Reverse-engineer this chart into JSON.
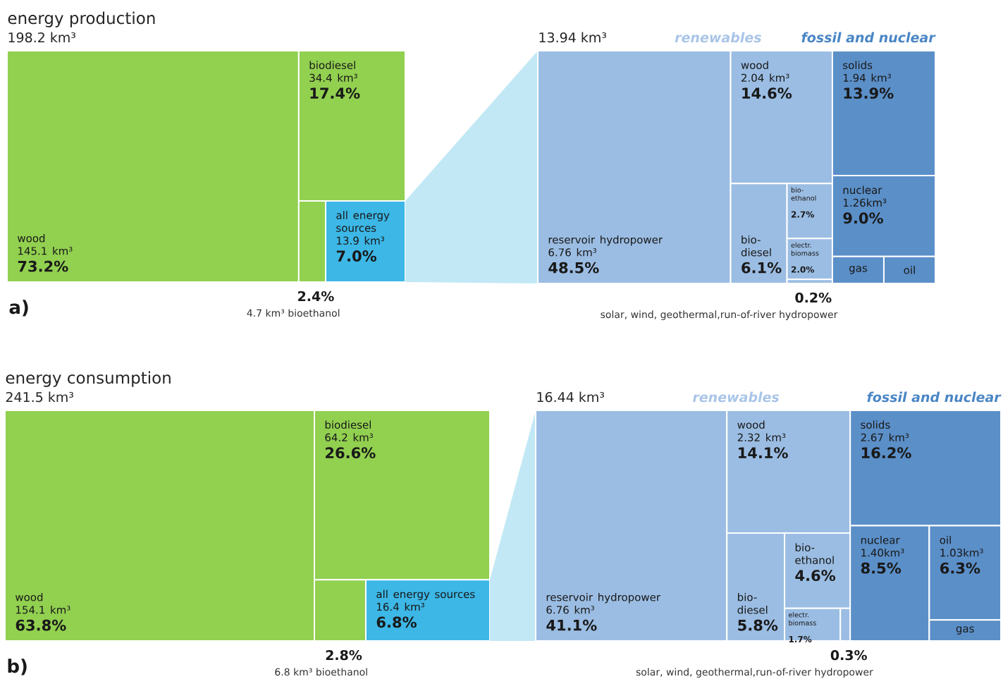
{
  "chart_data": [
    {
      "type": "other",
      "title": "energy production",
      "subtitle": "198.2 km³",
      "annotations": [
        "a)"
      ],
      "categories": [
        "wood",
        "biodiesel",
        "bioethanol",
        "all energy sources"
      ],
      "series": [
        {
          "colors": [
            "#92d050",
            "#92d050",
            "#92d050",
            "#3cb7e6"
          ],
          "values": [
            145.1,
            34.4,
            4.7,
            13.9
          ],
          "value_labels": [
            "145.1 km³",
            "34.4 km³",
            "4.7 km³",
            "13.9 km³"
          ]
        },
        {
          "values": [
            73.2,
            17.4,
            2.4,
            7.0
          ],
          "value_labels": [
            "73.2%",
            "17.4%",
            "2.4%",
            "7.0%"
          ]
        }
      ]
    },
    {
      "type": "other",
      "subtitle": "13.94 km³",
      "annotations": [
        "renewables",
        "fossil and nuclear"
      ],
      "categories": [
        "reservoir hydropower",
        "wood",
        "bio-diesel",
        "bio-ethanol",
        "electr. biomass",
        "solar, wind, geothermal,run-of-river hydropower",
        "solids",
        "nuclear",
        "gas",
        "oil"
      ],
      "series": [
        {
          "colors": [
            "#9bbde3",
            "#9bbde3",
            "#9bbde3",
            "#9bbde3",
            "#9bbde3",
            "#9bbde3",
            "#5b8fc8",
            "#5b8fc8",
            "#5b8fc8",
            "#5b8fc8"
          ],
          "values": [
            6.76,
            2.04,
            null,
            null,
            null,
            null,
            1.94,
            1.26,
            null,
            null
          ],
          "value_labels": [
            "6.76 km³",
            "2.04 km³",
            null,
            null,
            null,
            null,
            "1.94 km³",
            "1.26km³",
            null,
            null
          ]
        },
        {
          "values": [
            48.5,
            14.6,
            6.1,
            2.7,
            2.0,
            0.2,
            13.9,
            9.0,
            null,
            null
          ],
          "value_labels": [
            "48.5%",
            "14.6%",
            "6.1%",
            "2.7%",
            "2.0%",
            "0.2%",
            "13.9%",
            "9.0%",
            null,
            null
          ]
        }
      ]
    },
    {
      "type": "other",
      "title": "energy consumption",
      "subtitle": "241.5 km³",
      "annotations": [
        "b)"
      ],
      "categories": [
        "wood",
        "biodiesel",
        "bioethanol",
        "all energy sources"
      ],
      "series": [
        {
          "colors": [
            "#92d050",
            "#92d050",
            "#92d050",
            "#3cb7e6"
          ],
          "values": [
            154.1,
            64.2,
            6.8,
            16.4
          ],
          "value_labels": [
            "154.1 km³",
            "64.2 km³",
            "6.8 km³",
            "16.4 km³"
          ]
        },
        {
          "values": [
            63.8,
            26.6,
            2.8,
            6.8
          ],
          "value_labels": [
            "63.8%",
            "26.6%",
            "2.8%",
            "6.8%"
          ]
        }
      ]
    },
    {
      "type": "other",
      "subtitle": "16.44 km³",
      "annotations": [
        "renewables",
        "fossil and nuclear"
      ],
      "categories": [
        "reservoir hydropower",
        "wood",
        "bio-diesel",
        "bio-ethanol",
        "electr. biomass",
        "solar, wind, geothermal,run-of-river hydropower",
        "solids",
        "nuclear",
        "oil",
        "gas"
      ],
      "series": [
        {
          "colors": [
            "#9bbde3",
            "#9bbde3",
            "#9bbde3",
            "#9bbde3",
            "#9bbde3",
            "#9bbde3",
            "#5b8fc8",
            "#5b8fc8",
            "#5b8fc8",
            "#5b8fc8"
          ],
          "values": [
            6.76,
            2.32,
            null,
            null,
            null,
            null,
            2.67,
            1.4,
            1.03,
            null
          ],
          "value_labels": [
            "6.76 km³",
            "2.32 km³",
            null,
            null,
            null,
            null,
            "2.67 km³",
            "1.40km³",
            "1.03km³",
            null
          ]
        },
        {
          "values": [
            41.1,
            14.1,
            5.8,
            4.6,
            1.7,
            0.3,
            16.2,
            8.5,
            6.3,
            null
          ],
          "value_labels": [
            "41.1%",
            "14.1%",
            "5.8%",
            "4.6%",
            "1.7%",
            "0.3%",
            "16.2%",
            "8.5%",
            "6.3%",
            null
          ]
        }
      ]
    }
  ]
}
